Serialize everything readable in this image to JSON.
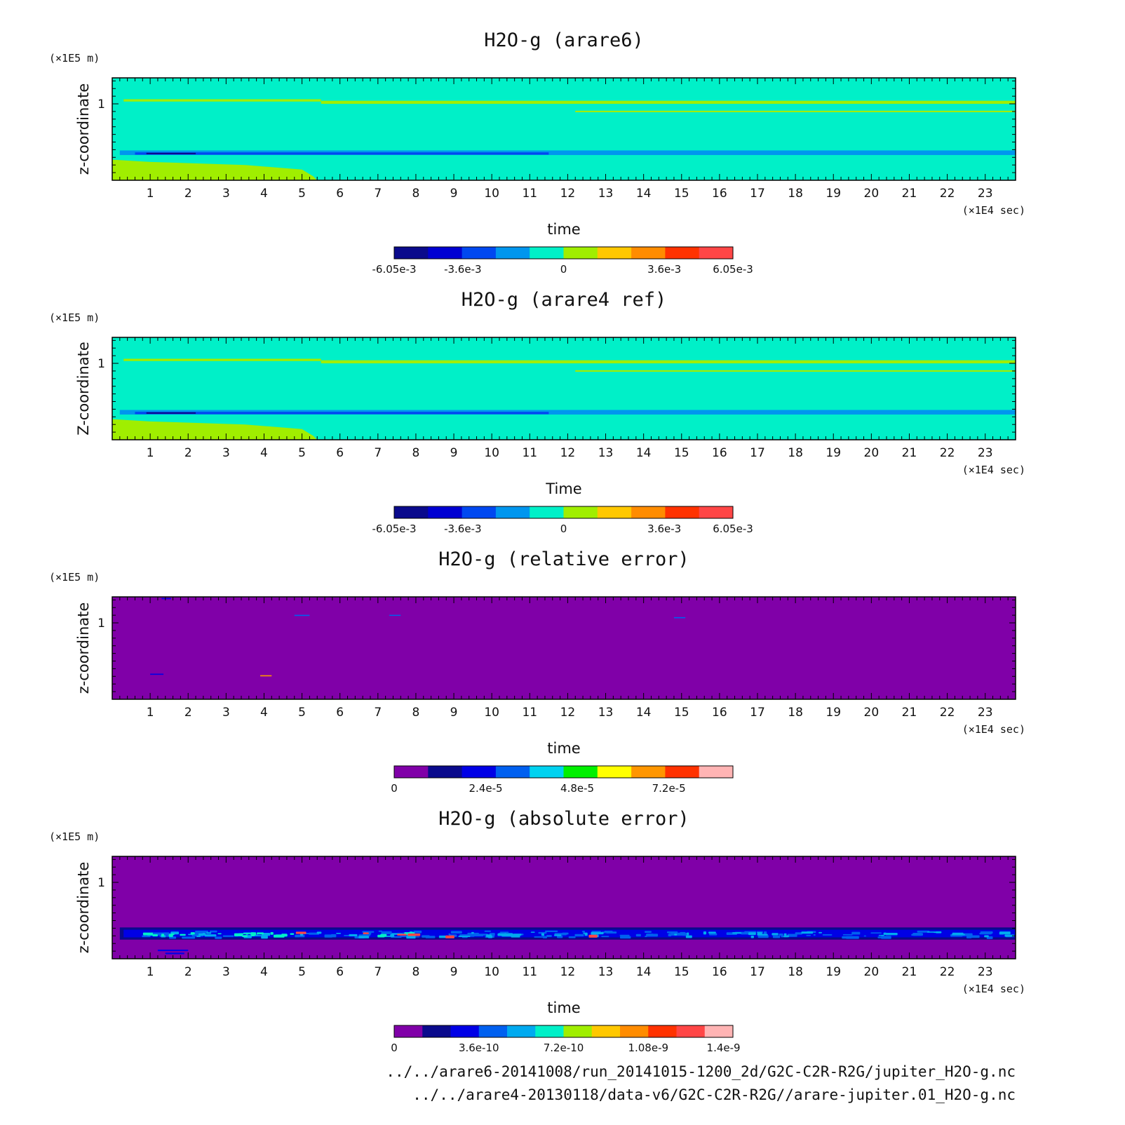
{
  "chart_data": [
    {
      "type": "heatmap",
      "title": "H2O-g (arare6)",
      "xlabel": "time",
      "ylabel": "z-coordinate",
      "x_unit": "(×1E4 sec)",
      "y_unit": "(×1E5 m)",
      "xlim": [
        0,
        23.8
      ],
      "ylim": [
        0,
        1.34
      ],
      "x_ticks": [
        "1",
        "2",
        "3",
        "4",
        "5",
        "6",
        "7",
        "8",
        "9",
        "10",
        "11",
        "12",
        "13",
        "14",
        "15",
        "16",
        "17",
        "18",
        "19",
        "20",
        "21",
        "22",
        "23"
      ],
      "y_ticks": [
        "1"
      ],
      "colorbar": {
        "colors": [
          "#0a0a8c",
          "#0000d2",
          "#0048f0",
          "#0096ee",
          "#00f0c8",
          "#a0ee00",
          "#ffc800",
          "#ff8c00",
          "#ff3200",
          "#ff4646"
        ],
        "labels": [
          {
            "text": "-6.05e-3",
            "value": -6.05
          },
          {
            "text": "-3.6e-3",
            "value": -3.6
          },
          {
            "text": "0",
            "value": 0
          },
          {
            "text": "3.6e-3",
            "value": 3.6
          },
          {
            "text": "6.05e-3",
            "value": 6.05
          }
        ],
        "range": [
          -6.05,
          6.05
        ]
      },
      "background": "#00f0c8",
      "features": [
        {
          "type": "poly",
          "color": "#a0ee00",
          "points": [
            [
              0,
              0
            ],
            [
              5.4,
              0
            ],
            [
              5.3,
              0.05
            ],
            [
              5.0,
              0.14
            ],
            [
              3.5,
              0.2
            ],
            [
              1,
              0.24
            ],
            [
              0,
              0.27
            ]
          ]
        },
        {
          "type": "band",
          "color": "#0096ee",
          "x0": 0.2,
          "x1": 23.8,
          "z0": 0.33,
          "z1": 0.39
        },
        {
          "type": "band",
          "color": "#0048f0",
          "x0": 0.6,
          "x1": 11.5,
          "z0": 0.335,
          "z1": 0.365
        },
        {
          "type": "band",
          "color": "#0a0a8c",
          "x0": 0.9,
          "x1": 2.2,
          "z0": 0.34,
          "z1": 0.36
        },
        {
          "type": "band",
          "color": "#a0ee00",
          "x0": 0.3,
          "x1": 5.5,
          "z0": 1.03,
          "z1": 1.06
        },
        {
          "type": "band",
          "color": "#a0ee00",
          "x0": 5.5,
          "x1": 23.8,
          "z0": 1.0,
          "z1": 1.04
        },
        {
          "type": "band",
          "color": "#a0ee00",
          "x0": 12.2,
          "x1": 23.8,
          "z0": 0.89,
          "z1": 0.91
        }
      ]
    },
    {
      "type": "heatmap",
      "title": "H2O-g (arare4 ref)",
      "xlabel": "Time",
      "ylabel": "Z-coordinate",
      "x_unit": "(×1E4 sec)",
      "y_unit": "(×1E5 m)",
      "xlim": [
        0,
        23.8
      ],
      "ylim": [
        0,
        1.34
      ],
      "x_ticks": [
        "1",
        "2",
        "3",
        "4",
        "5",
        "6",
        "7",
        "8",
        "9",
        "10",
        "11",
        "12",
        "13",
        "14",
        "15",
        "16",
        "17",
        "18",
        "19",
        "20",
        "21",
        "22",
        "23"
      ],
      "y_ticks": [
        "1"
      ],
      "colorbar": {
        "colors": [
          "#0a0a8c",
          "#0000d2",
          "#0048f0",
          "#0096ee",
          "#00f0c8",
          "#a0ee00",
          "#ffc800",
          "#ff8c00",
          "#ff3200",
          "#ff4646"
        ],
        "labels": [
          {
            "text": "-6.05e-3",
            "value": -6.05
          },
          {
            "text": "-3.6e-3",
            "value": -3.6
          },
          {
            "text": "0",
            "value": 0
          },
          {
            "text": "3.6e-3",
            "value": 3.6
          },
          {
            "text": "6.05e-3",
            "value": 6.05
          }
        ],
        "range": [
          -6.05,
          6.05
        ]
      },
      "background": "#00f0c8",
      "features": [
        {
          "type": "poly",
          "color": "#a0ee00",
          "points": [
            [
              0,
              0
            ],
            [
              5.4,
              0
            ],
            [
              5.3,
              0.05
            ],
            [
              5.0,
              0.14
            ],
            [
              3.5,
              0.2
            ],
            [
              1,
              0.24
            ],
            [
              0,
              0.27
            ]
          ]
        },
        {
          "type": "band",
          "color": "#0096ee",
          "x0": 0.2,
          "x1": 23.8,
          "z0": 0.33,
          "z1": 0.39
        },
        {
          "type": "band",
          "color": "#0048f0",
          "x0": 0.6,
          "x1": 11.5,
          "z0": 0.335,
          "z1": 0.365
        },
        {
          "type": "band",
          "color": "#0a0a8c",
          "x0": 0.9,
          "x1": 2.2,
          "z0": 0.34,
          "z1": 0.36
        },
        {
          "type": "band",
          "color": "#a0ee00",
          "x0": 0.3,
          "x1": 5.5,
          "z0": 1.03,
          "z1": 1.06
        },
        {
          "type": "band",
          "color": "#a0ee00",
          "x0": 5.5,
          "x1": 23.8,
          "z0": 1.0,
          "z1": 1.04
        },
        {
          "type": "band",
          "color": "#a0ee00",
          "x0": 12.2,
          "x1": 23.8,
          "z0": 0.89,
          "z1": 0.91
        }
      ]
    },
    {
      "type": "heatmap",
      "title": "H2O-g (relative error)",
      "xlabel": "time",
      "ylabel": "z-coordinate",
      "x_unit": "(×1E4 sec)",
      "y_unit": "(×1E5 m)",
      "xlim": [
        0,
        23.8
      ],
      "ylim": [
        0,
        1.34
      ],
      "x_ticks": [
        "1",
        "2",
        "3",
        "4",
        "5",
        "6",
        "7",
        "8",
        "9",
        "10",
        "11",
        "12",
        "13",
        "14",
        "15",
        "16",
        "17",
        "18",
        "19",
        "20",
        "21",
        "22",
        "23"
      ],
      "y_ticks": [
        "1"
      ],
      "colorbar": {
        "colors": [
          "#8000a8",
          "#0a0a8c",
          "#0000e6",
          "#0060f0",
          "#00d2f0",
          "#00f000",
          "#ffff00",
          "#ff9600",
          "#ff3200",
          "#ffb4b4"
        ],
        "labels": [
          {
            "text": "0",
            "value": 0
          },
          {
            "text": "2.4e-5",
            "value": 2.4
          },
          {
            "text": "4.8e-5",
            "value": 4.8
          },
          {
            "text": "7.2e-5",
            "value": 7.2
          }
        ],
        "range": [
          0,
          8.88
        ]
      },
      "background": "#8000a8",
      "features": [
        {
          "type": "band",
          "color": "#0060f0",
          "x0": 4.8,
          "x1": 5.2,
          "z0": 1.09,
          "z1": 1.105
        },
        {
          "type": "band",
          "color": "#0060f0",
          "x0": 7.3,
          "x1": 7.6,
          "z0": 1.095,
          "z1": 1.105
        },
        {
          "type": "band",
          "color": "#0060f0",
          "x0": 14.8,
          "x1": 15.1,
          "z0": 1.06,
          "z1": 1.075
        },
        {
          "type": "band",
          "color": "#ff9600",
          "x0": 3.9,
          "x1": 4.2,
          "z0": 0.3,
          "z1": 0.315
        },
        {
          "type": "band",
          "color": "#0000e6",
          "x0": 1.0,
          "x1": 1.35,
          "z0": 0.32,
          "z1": 0.335
        },
        {
          "type": "band",
          "color": "#0000e6",
          "x0": 1.3,
          "x1": 1.55,
          "z0": 1.31,
          "z1": 1.325
        }
      ]
    },
    {
      "type": "heatmap",
      "title": "H2O-g (absolute error)",
      "xlabel": "time",
      "ylabel": "z-coordinate",
      "x_unit": "(×1E4 sec)",
      "y_unit": "(×1E5 m)",
      "xlim": [
        0,
        23.8
      ],
      "ylim": [
        0,
        1.34
      ],
      "x_ticks": [
        "1",
        "2",
        "3",
        "4",
        "5",
        "6",
        "7",
        "8",
        "9",
        "10",
        "11",
        "12",
        "13",
        "14",
        "15",
        "16",
        "17",
        "18",
        "19",
        "20",
        "21",
        "22",
        "23"
      ],
      "y_ticks": [
        "1"
      ],
      "colorbar": {
        "colors": [
          "#8000a8",
          "#0a0a8c",
          "#0000e6",
          "#0060f0",
          "#00aaf0",
          "#00f0c8",
          "#a0ee00",
          "#ffc800",
          "#ff8c00",
          "#ff3200",
          "#ff4646",
          "#ffb4b4"
        ],
        "labels": [
          {
            "text": "0",
            "value": 0
          },
          {
            "text": "3.6e-10",
            "value": 3.6
          },
          {
            "text": "7.2e-10",
            "value": 7.2
          },
          {
            "text": "1.08e-9",
            "value": 10.8
          },
          {
            "text": "1.4e-9",
            "value": 14.0
          }
        ],
        "range": [
          0,
          14.4
        ]
      },
      "background": "#8000a8",
      "features": [
        {
          "type": "band",
          "color": "#0a0a8c",
          "x0": 0.2,
          "x1": 23.8,
          "z0": 0.25,
          "z1": 0.41
        },
        {
          "type": "band",
          "color": "#0000e6",
          "x0": 0.3,
          "x1": 23.8,
          "z0": 0.28,
          "z1": 0.38
        },
        {
          "type": "noise",
          "color": "#0060f0",
          "x0": 0.5,
          "x1": 23.8,
          "z0": 0.29,
          "z1": 0.37,
          "n": 130,
          "seed": 11
        },
        {
          "type": "noise",
          "color": "#00aaf0",
          "x0": 0.6,
          "x1": 23.6,
          "z0": 0.3,
          "z1": 0.36,
          "n": 70,
          "seed": 23
        },
        {
          "type": "noise",
          "color": "#00f0c8",
          "x0": 0.7,
          "x1": 9.0,
          "z0": 0.31,
          "z1": 0.35,
          "n": 22,
          "seed": 37
        },
        {
          "type": "noise",
          "color": "#ff4646",
          "x0": 1.0,
          "x1": 16.0,
          "z0": 0.3,
          "z1": 0.36,
          "n": 6,
          "seed": 51
        },
        {
          "type": "band",
          "color": "#0000e6",
          "x0": 1.2,
          "x1": 2.0,
          "z0": 0.1,
          "z1": 0.12
        },
        {
          "type": "band",
          "color": "#0000e6",
          "x0": 1.4,
          "x1": 1.9,
          "z0": 0.06,
          "z1": 0.08
        }
      ]
    }
  ],
  "footer": {
    "line1": "../../arare6-20141008/run_20141015-1200_2d/G2C-C2R-R2G/jupiter_H2O-g.nc",
    "line2": "../../arare4-20130118/data-v6/G2C-C2R-R2G//arare-jupiter.01_H2O-g.nc"
  }
}
